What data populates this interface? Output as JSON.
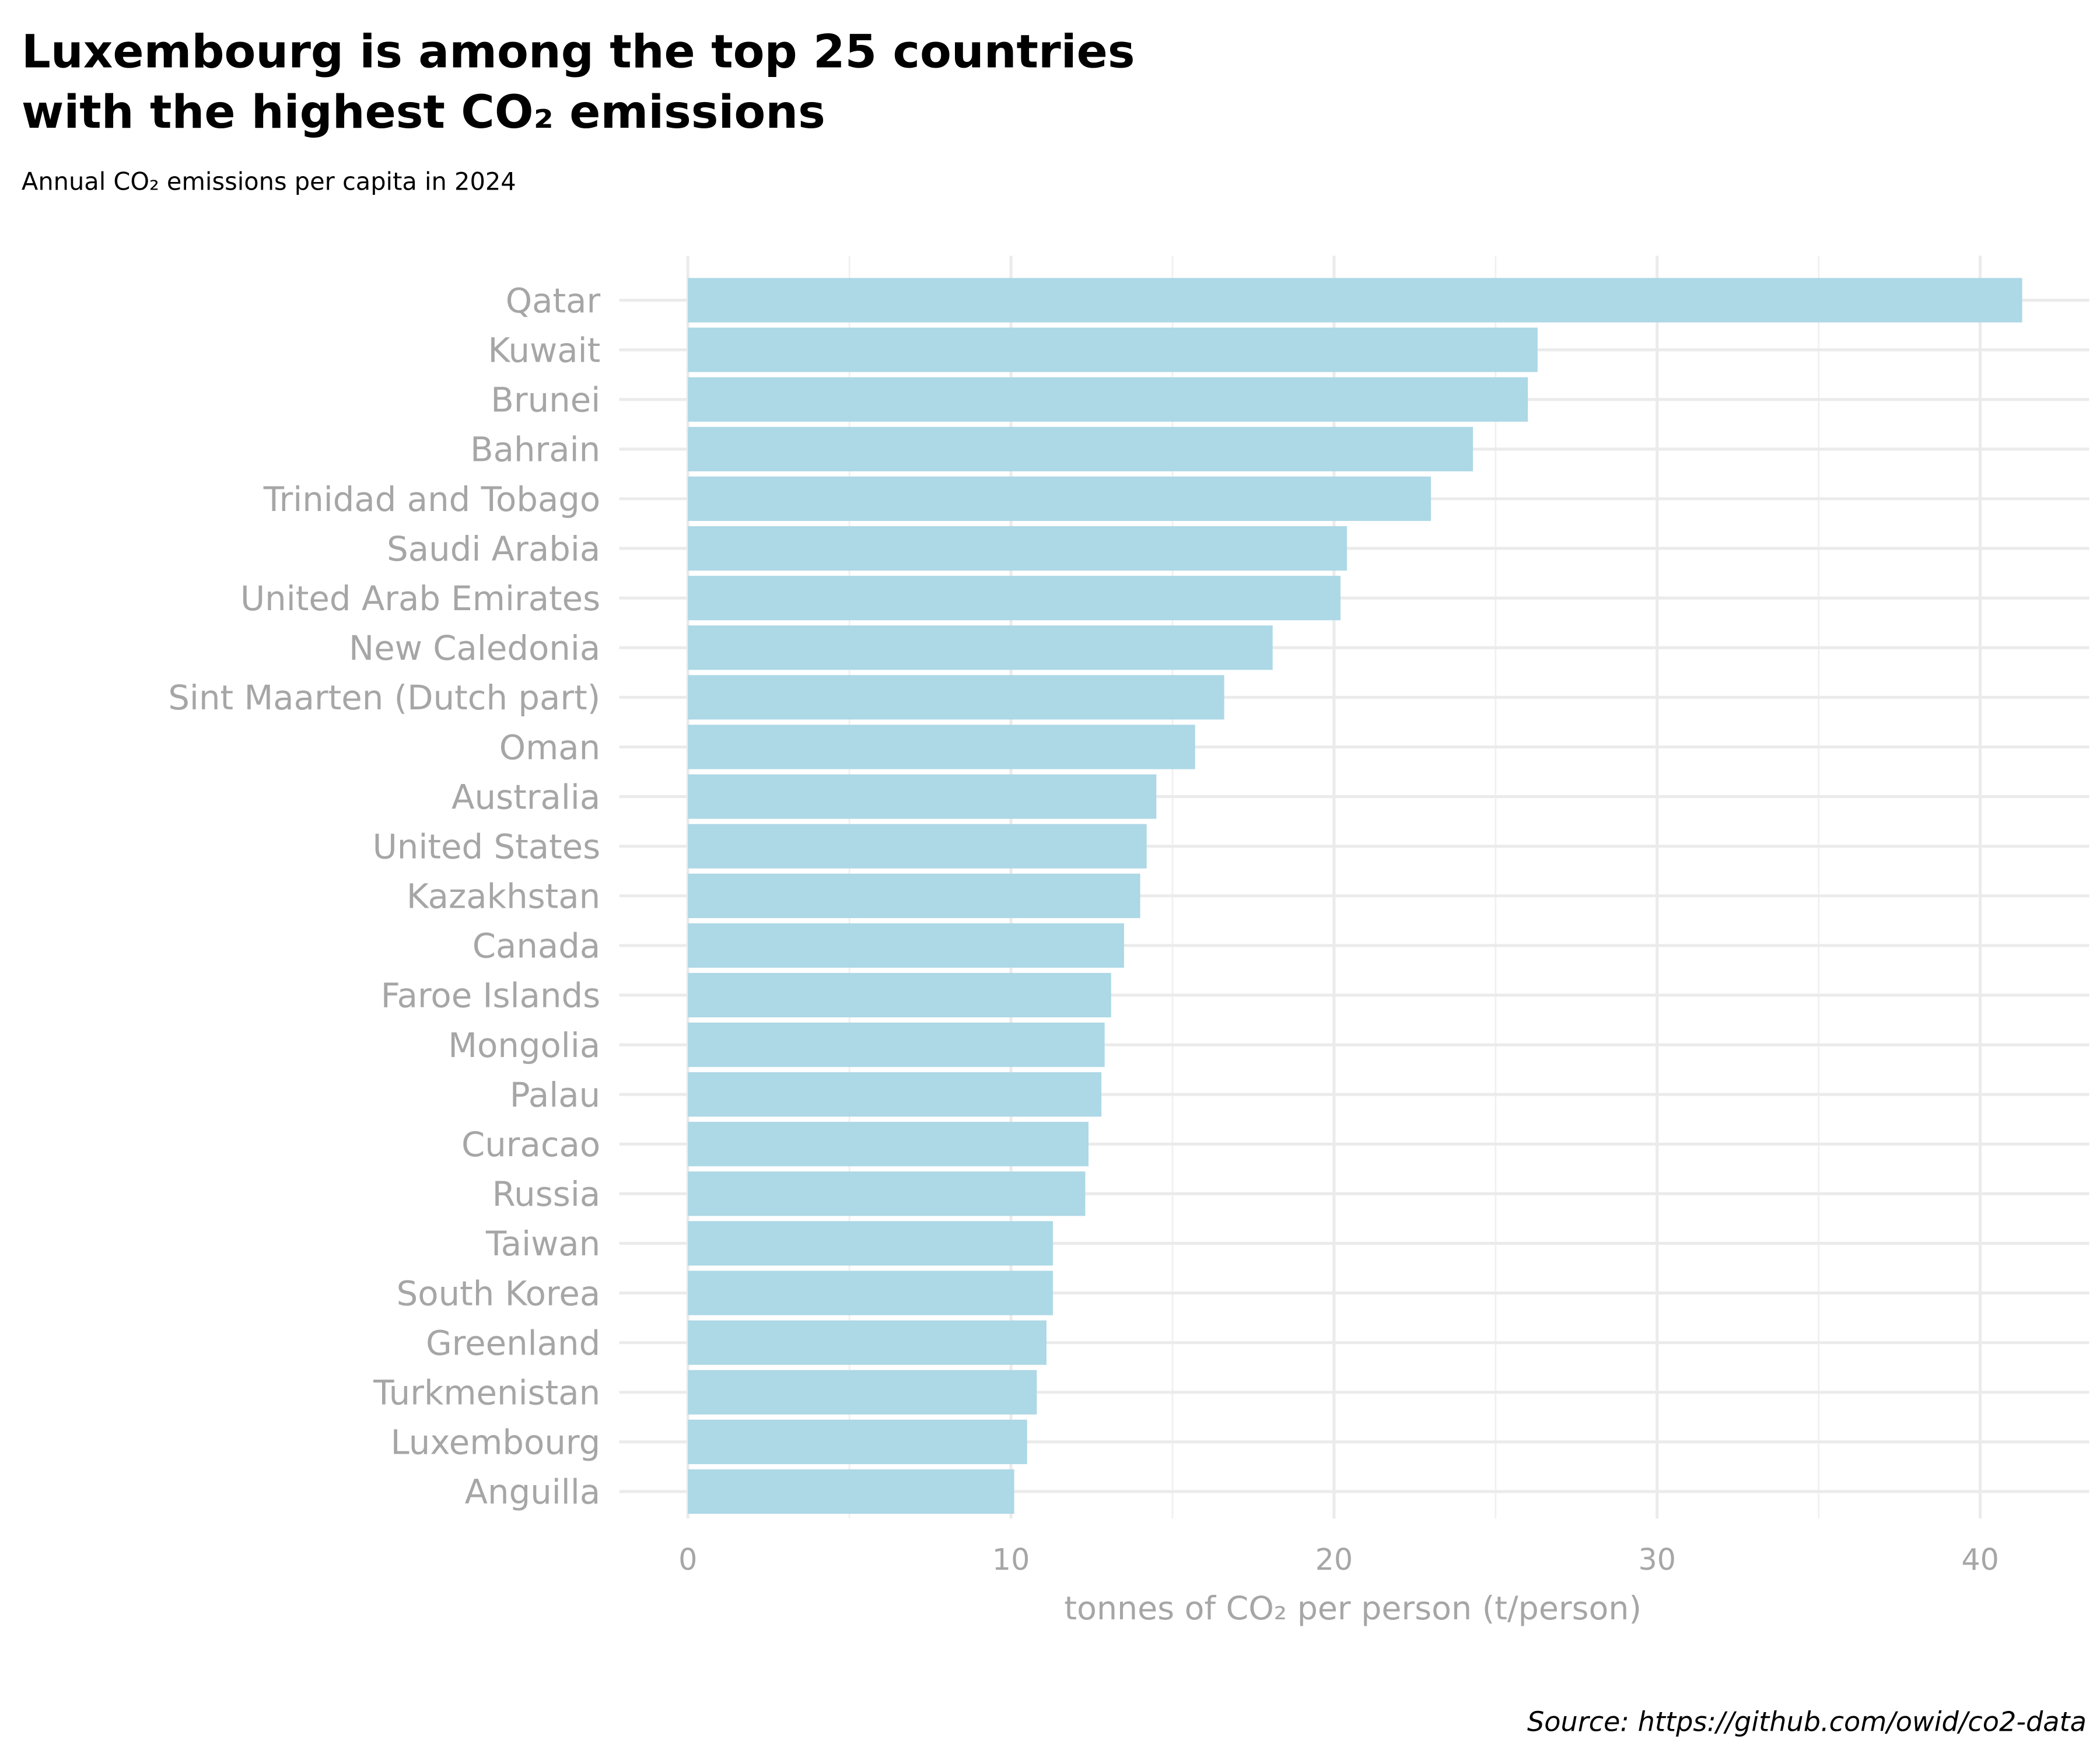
{
  "chart_data": {
    "type": "bar",
    "orientation": "horizontal",
    "title_line1": "Luxembourg is among the top 25 countries",
    "title_line2": "with the highest CO₂ emissions",
    "subtitle": "Annual CO₂ emissions per capita in 2024",
    "xlabel": "tonnes of  CO₂ per person (t/person)",
    "ylabel": "",
    "caption": "Source: https://github.com/owid/co2-data",
    "xlim": [
      0,
      43
    ],
    "xticks": [
      0,
      10,
      20,
      30,
      40
    ],
    "xtick_labels": [
      "0",
      "10",
      "20",
      "30",
      "40"
    ],
    "grid": true,
    "bar_color": "#add8e6",
    "categories": [
      "Qatar",
      "Kuwait",
      "Brunei",
      "Bahrain",
      "Trinidad and Tobago",
      "Saudi Arabia",
      "United Arab Emirates",
      "New Caledonia",
      "Sint Maarten (Dutch part)",
      "Oman",
      "Australia",
      "United States",
      "Kazakhstan",
      "Canada",
      "Faroe Islands",
      "Mongolia",
      "Palau",
      "Curacao",
      "Russia",
      "Taiwan",
      "South Korea",
      "Greenland",
      "Turkmenistan",
      "Luxembourg",
      "Anguilla"
    ],
    "values": [
      41.3,
      26.3,
      26.0,
      24.3,
      23.0,
      20.4,
      20.2,
      18.1,
      16.6,
      15.7,
      14.5,
      14.2,
      14.0,
      13.5,
      13.1,
      12.9,
      12.8,
      12.4,
      12.3,
      11.3,
      11.3,
      11.1,
      10.8,
      10.5,
      10.1
    ]
  }
}
